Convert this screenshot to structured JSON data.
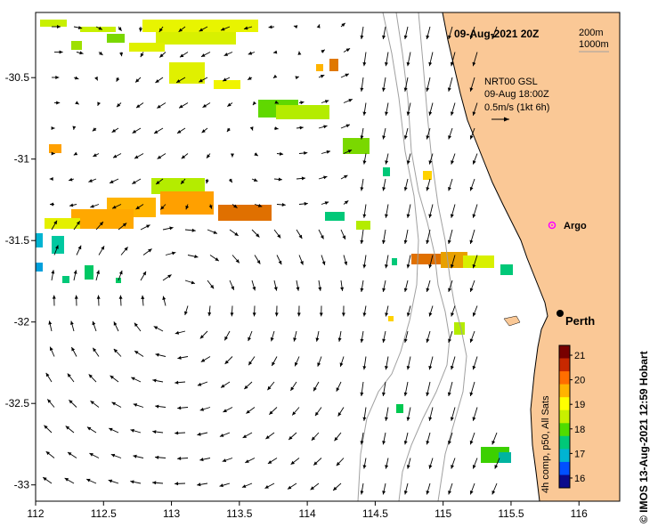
{
  "title": "09-Aug-2021 20Z",
  "depth_legend": {
    "line1": "200m",
    "line2": "1000m"
  },
  "product": {
    "name": "NRT00 GSL",
    "time": "09-Aug 18:00Z",
    "scale": "0.5m/s (1kt 6h)"
  },
  "labels": {
    "argo": "Argo",
    "perth": "Perth"
  },
  "colorbar": {
    "title": "4h comp, p50, All Sats",
    "ticks": [
      "21",
      "20",
      "19",
      "18",
      "17",
      "16"
    ],
    "min": 15.6,
    "max": 21.4,
    "colors": [
      "#0a0a8c",
      "#0050ff",
      "#00b4d2",
      "#00c878",
      "#50dc00",
      "#c8f000",
      "#ffff00",
      "#ffb400",
      "#ff6e00",
      "#c82800",
      "#780000"
    ]
  },
  "axes": {
    "x_ticks": [
      "112",
      "112.5",
      "113",
      "113.5",
      "114",
      "114.5",
      "115",
      "115.5",
      "116"
    ],
    "y_ticks": [
      "-30.5",
      "-31",
      "-31.5",
      "-32",
      "-32.5",
      "-33"
    ],
    "xlim": [
      112,
      116.3
    ],
    "ylim": [
      -33.1,
      -30.1
    ]
  },
  "credit": "© IMOS 13-Aug-2021 12:59 Hobart",
  "colors": {
    "land": "#fac896",
    "vector": "#000000",
    "bathy": "#a0a0a0",
    "argo": "#ff00ff"
  }
}
